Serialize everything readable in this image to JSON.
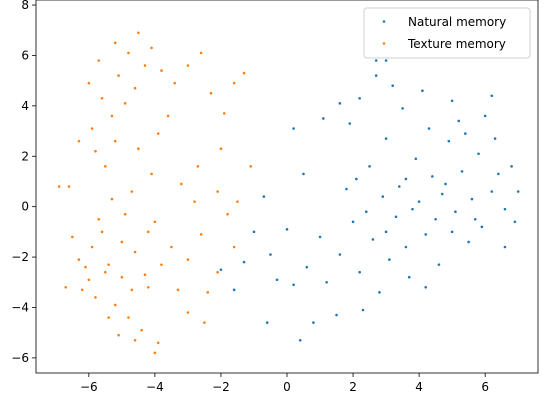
{
  "chart_data": {
    "type": "scatter",
    "title": "",
    "xlabel": "",
    "ylabel": "",
    "xlim": [
      -7.6,
      7.6
    ],
    "ylim": [
      -6.6,
      8.2
    ],
    "xticks": [
      -6,
      -4,
      -2,
      0,
      2,
      4,
      6
    ],
    "yticks": [
      -6,
      -4,
      -2,
      0,
      2,
      4,
      6,
      8
    ],
    "xtick_labels": [
      "−6",
      "−4",
      "−2",
      "0",
      "2",
      "4",
      "6"
    ],
    "ytick_labels": [
      "−6",
      "−4",
      "−2",
      "0",
      "2",
      "4",
      "6",
      "8"
    ],
    "grid": false,
    "legend_position": "top-right",
    "series": [
      {
        "name": "Natural memory",
        "color": "#1f77b4",
        "points": [
          [
            4.5,
            -0.5
          ],
          [
            5.1,
            -0.2
          ],
          [
            4.2,
            -1.1
          ],
          [
            5.6,
            0.3
          ],
          [
            3.6,
            -1.6
          ],
          [
            4.8,
            0.9
          ],
          [
            5.9,
            -0.8
          ],
          [
            3.1,
            -2.1
          ],
          [
            4.0,
            0.2
          ],
          [
            5.3,
            1.4
          ],
          [
            6.2,
            0.6
          ],
          [
            2.6,
            -1.3
          ],
          [
            3.4,
            0.8
          ],
          [
            4.6,
            -2.3
          ],
          [
            5.5,
            -1.4
          ],
          [
            6.6,
            -0.1
          ],
          [
            2.2,
            -2.6
          ],
          [
            3.9,
            1.9
          ],
          [
            4.9,
            2.6
          ],
          [
            5.8,
            2.1
          ],
          [
            6.4,
            1.3
          ],
          [
            3.0,
            2.7
          ],
          [
            2.0,
            -0.6
          ],
          [
            1.6,
            -1.9
          ],
          [
            1.2,
            -3.0
          ],
          [
            2.8,
            -3.4
          ],
          [
            3.7,
            -2.8
          ],
          [
            4.3,
            3.1
          ],
          [
            5.2,
            3.4
          ],
          [
            6.0,
            3.6
          ],
          [
            3.5,
            3.9
          ],
          [
            2.5,
            1.6
          ],
          [
            1.8,
            0.7
          ],
          [
            1.0,
            -1.2
          ],
          [
            0.6,
            -2.4
          ],
          [
            0.2,
            -3.1
          ],
          [
            1.5,
            -4.3
          ],
          [
            0.8,
            -4.6
          ],
          [
            2.3,
            -4.1
          ],
          [
            4.1,
            4.6
          ],
          [
            3.2,
            4.8
          ],
          [
            2.7,
            5.2
          ],
          [
            1.9,
            3.3
          ],
          [
            0.5,
            1.3
          ],
          [
            0.0,
            -0.9
          ],
          [
            -0.5,
            -1.9
          ],
          [
            -1.3,
            -2.2
          ],
          [
            -1.6,
            -3.3
          ],
          [
            -0.3,
            -2.9
          ],
          [
            -0.6,
            -4.6
          ],
          [
            0.4,
            -5.3
          ],
          [
            1.1,
            3.5
          ],
          [
            6.9,
            -0.6
          ],
          [
            7.0,
            0.6
          ],
          [
            6.6,
            -1.6
          ],
          [
            3.3,
            -0.4
          ],
          [
            4.4,
            1.2
          ],
          [
            5.7,
            -0.5
          ],
          [
            2.9,
            0.4
          ],
          [
            2.4,
            -0.2
          ],
          [
            3.8,
            -0.1
          ],
          [
            4.7,
            0.5
          ],
          [
            5.0,
            -1.0
          ],
          [
            3.6,
            1.1
          ],
          [
            2.1,
            1.1
          ],
          [
            6.3,
            2.7
          ],
          [
            5.4,
            2.9
          ],
          [
            6.8,
            1.6
          ],
          [
            4.2,
            -3.2
          ],
          [
            3.0,
            -1.0
          ],
          [
            2.7,
            5.8
          ],
          [
            3.0,
            5.8
          ],
          [
            -0.7,
            0.4
          ],
          [
            0.2,
            3.1
          ],
          [
            1.6,
            4.1
          ],
          [
            2.2,
            4.3
          ],
          [
            5.0,
            4.2
          ],
          [
            6.2,
            4.4
          ],
          [
            -2.0,
            -2.5
          ],
          [
            -1.0,
            -1.0
          ]
        ]
      },
      {
        "name": "Texture memory",
        "color": "#ff7f0e",
        "points": [
          [
            -5.4,
            -2.3
          ],
          [
            -5.0,
            -2.8
          ],
          [
            -4.6,
            -1.8
          ],
          [
            -5.9,
            -1.6
          ],
          [
            -4.2,
            -3.2
          ],
          [
            -5.2,
            -3.9
          ],
          [
            -6.0,
            -2.9
          ],
          [
            -4.8,
            -4.4
          ],
          [
            -3.8,
            -2.3
          ],
          [
            -5.6,
            -1.0
          ],
          [
            -6.3,
            -2.1
          ],
          [
            -4.4,
            -4.9
          ],
          [
            -5.1,
            -5.1
          ],
          [
            -3.5,
            -1.6
          ],
          [
            -4.0,
            -0.6
          ],
          [
            -6.5,
            -1.2
          ],
          [
            -6.2,
            -3.3
          ],
          [
            -5.3,
            0.3
          ],
          [
            -4.7,
            0.6
          ],
          [
            -3.3,
            -3.3
          ],
          [
            -3.0,
            -2.1
          ],
          [
            -2.6,
            -1.1
          ],
          [
            -2.8,
            0.2
          ],
          [
            -3.2,
            0.9
          ],
          [
            -4.1,
            1.3
          ],
          [
            -5.5,
            1.6
          ],
          [
            -5.8,
            2.2
          ],
          [
            -5.2,
            2.6
          ],
          [
            -4.5,
            2.3
          ],
          [
            -5.9,
            3.1
          ],
          [
            -5.3,
            3.6
          ],
          [
            -4.9,
            4.1
          ],
          [
            -5.6,
            4.3
          ],
          [
            -4.6,
            4.7
          ],
          [
            -5.1,
            5.2
          ],
          [
            -4.3,
            5.6
          ],
          [
            -4.8,
            6.1
          ],
          [
            -5.2,
            6.5
          ],
          [
            -4.5,
            6.9
          ],
          [
            -4.1,
            6.3
          ],
          [
            -3.8,
            5.4
          ],
          [
            -3.4,
            4.9
          ],
          [
            -3.0,
            5.6
          ],
          [
            -2.6,
            6.1
          ],
          [
            -2.3,
            4.5
          ],
          [
            -3.6,
            3.6
          ],
          [
            -3.9,
            2.9
          ],
          [
            -6.0,
            4.9
          ],
          [
            -5.7,
            5.8
          ],
          [
            -6.3,
            2.6
          ],
          [
            -6.6,
            0.8
          ],
          [
            -2.1,
            -2.6
          ],
          [
            -2.4,
            -3.4
          ],
          [
            -2.5,
            -4.6
          ],
          [
            -3.0,
            -4.2
          ],
          [
            -4.0,
            -5.8
          ],
          [
            -4.6,
            -5.3
          ],
          [
            -3.9,
            -5.4
          ],
          [
            -6.9,
            0.8
          ],
          [
            -6.7,
            -3.2
          ],
          [
            -1.6,
            4.9
          ],
          [
            -1.3,
            5.3
          ],
          [
            -1.8,
            -0.3
          ],
          [
            -1.6,
            -1.6
          ],
          [
            -2.1,
            0.6
          ],
          [
            -2.7,
            1.6
          ],
          [
            -2.0,
            2.3
          ],
          [
            -1.9,
            3.7
          ],
          [
            -1.1,
            1.6
          ],
          [
            -1.5,
            0.2
          ],
          [
            -4.9,
            -0.3
          ],
          [
            -5.7,
            -0.5
          ],
          [
            -4.3,
            -2.7
          ],
          [
            -5.0,
            -1.4
          ],
          [
            -5.5,
            -2.6
          ],
          [
            -4.7,
            -3.3
          ],
          [
            -6.1,
            -2.4
          ],
          [
            -5.8,
            -3.6
          ],
          [
            -5.4,
            -4.4
          ],
          [
            -4.2,
            -1.0
          ]
        ]
      }
    ]
  }
}
